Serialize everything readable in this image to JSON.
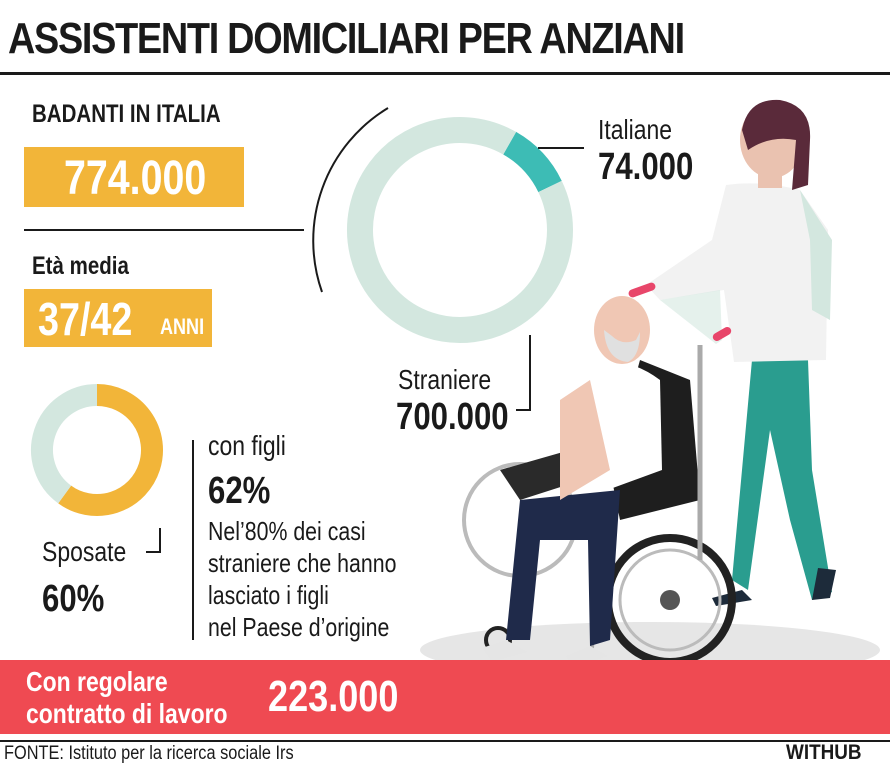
{
  "title": "ASSISTENTI DOMICILIARI PER ANZIANI",
  "badanti": {
    "label": "BADANTI IN ITALIA",
    "value": "774.000"
  },
  "eta": {
    "label": "Età media",
    "value": "37/42",
    "unit": "ANNI"
  },
  "figli": {
    "label": "con figli",
    "value": "62%",
    "note": [
      "Nel’80% dei casi",
      "straniere che hanno",
      "lasciato i figli",
      "nel Paese d’origine"
    ]
  },
  "contratto": {
    "label_line1": "Con regolare",
    "label_line2": "contratto di lavoro",
    "value": "223.000"
  },
  "source": "FONTE: Istituto per la ricerca sociale Irs",
  "brand": "WITHUB",
  "colors": {
    "yellow": "#f2b539",
    "mint": "#d3e7df",
    "teal": "#3dbcb5",
    "red": "#ef4a52",
    "dark": "#1a1a1a"
  },
  "chart_data": [
    {
      "type": "pie",
      "categories": [
        "Italiane",
        "Straniere"
      ],
      "labels": [
        "74.000",
        "700.000"
      ],
      "values": [
        74000,
        700000
      ],
      "colors": [
        "#3dbcb5",
        "#d3e7df"
      ]
    },
    {
      "type": "pie",
      "categories": [
        "Sposate",
        ""
      ],
      "labels": [
        "60%",
        ""
      ],
      "values": [
        60,
        40
      ],
      "colors": [
        "#f2b539",
        "#d3e7df"
      ]
    }
  ],
  "illustration": {
    "description_icon": "caregiver-pushing-wheelchair-icon"
  }
}
